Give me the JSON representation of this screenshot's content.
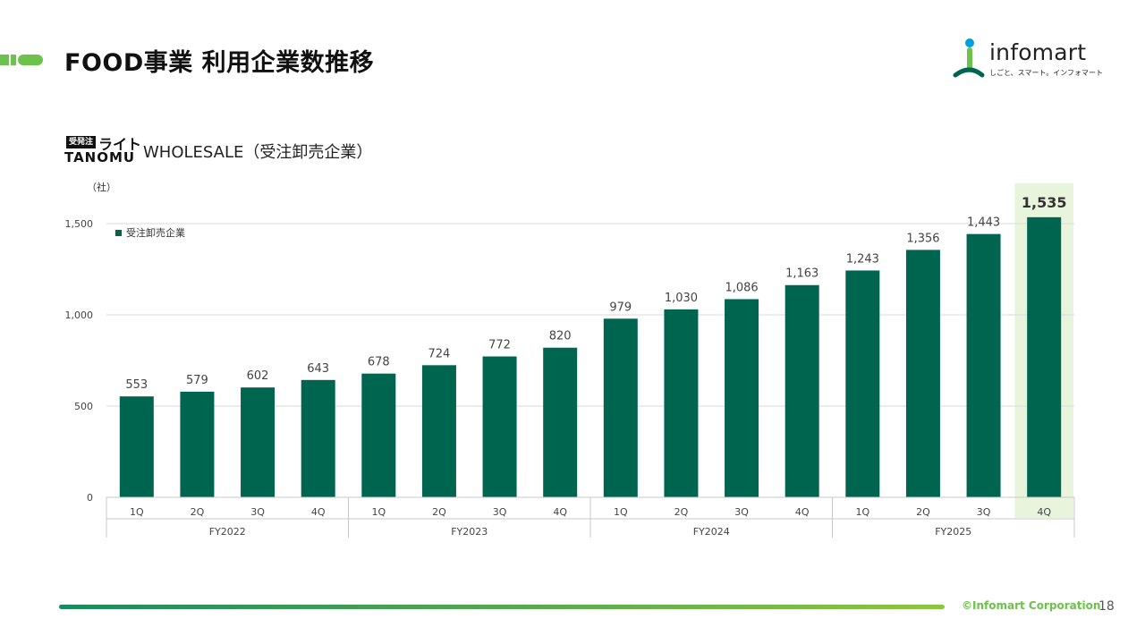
{
  "header": {
    "title": "FOOD事業 利用企業数推移"
  },
  "logo": {
    "word": "infomart",
    "tagline": "しごと、スマート。インフォマート",
    "icon": "person-figure-icon"
  },
  "brand": {
    "badge": "受発注",
    "lite": "ライト",
    "name": "TANOMU"
  },
  "chart_title": "WHOLESALE（受注卸売企業）",
  "unit_label": "（社）",
  "chart_data": {
    "type": "bar",
    "categories": [
      "1Q",
      "2Q",
      "3Q",
      "4Q",
      "1Q",
      "2Q",
      "3Q",
      "4Q",
      "1Q",
      "2Q",
      "3Q",
      "4Q",
      "1Q",
      "2Q",
      "3Q",
      "4Q"
    ],
    "groups": [
      {
        "label": "FY2022",
        "count": 4
      },
      {
        "label": "FY2023",
        "count": 4
      },
      {
        "label": "FY2024",
        "count": 4
      },
      {
        "label": "FY2025",
        "count": 4
      }
    ],
    "series": [
      {
        "name": "受注卸売企業",
        "values": [
          553,
          579,
          602,
          643,
          678,
          724,
          772,
          820,
          979,
          1030,
          1086,
          1163,
          1243,
          1356,
          1443,
          1535
        ],
        "labels": [
          "553",
          "579",
          "602",
          "643",
          "678",
          "724",
          "772",
          "820",
          "979",
          "1,030",
          "1,086",
          "1,163",
          "1,243",
          "1,356",
          "1,443",
          "1,535"
        ]
      }
    ],
    "highlight_index": 15,
    "yticks": [
      0,
      500,
      1000,
      1500
    ],
    "ytick_labels": [
      "0",
      "500",
      "1,000",
      "1,500"
    ],
    "ylim": [
      0,
      1500
    ],
    "grid": true,
    "legend_position": "top-left",
    "colors": {
      "bar": "#00654f",
      "highlight_bg": "#e8f5dc",
      "grid": "#d9d9d9",
      "axis": "#c8c8c8"
    }
  },
  "footer": {
    "copyright": "©Infomart Corporation",
    "page_number": "18"
  }
}
